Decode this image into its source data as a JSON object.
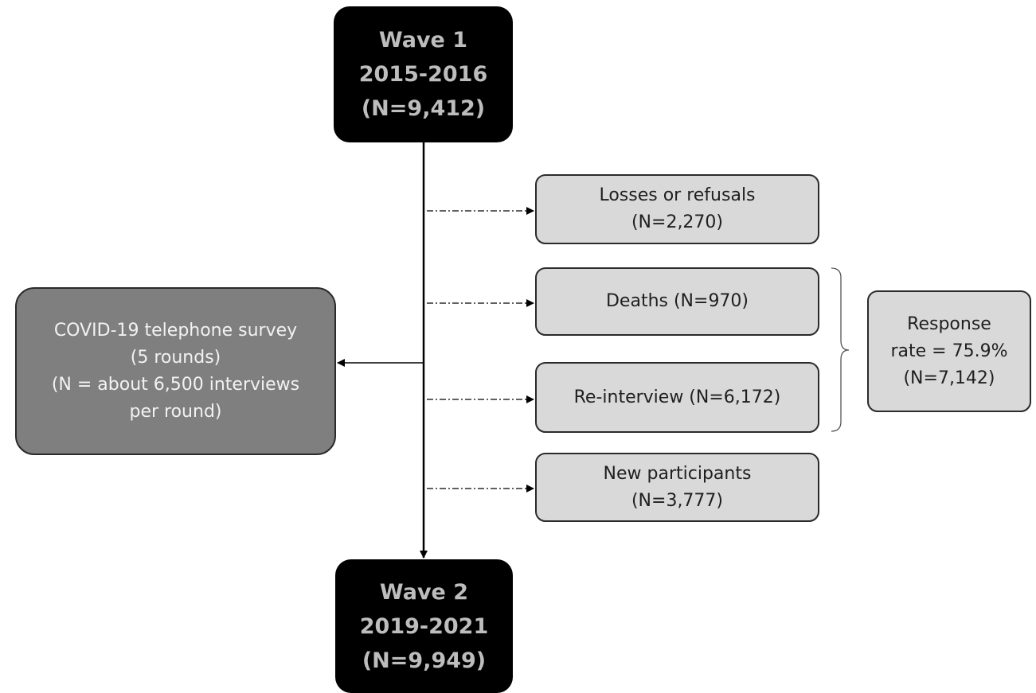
{
  "colors": {
    "wave_fill": "#000000",
    "wave_text": "#bdbdbd",
    "box_fill": "#d9d9d9",
    "covid_fill": "#7f7f7f",
    "covid_text": "#f2f2f2",
    "stroke": "#2b2b2b"
  },
  "wave1": {
    "lines": [
      "Wave 1",
      "2015-2016",
      "(N=9,412)"
    ]
  },
  "wave2": {
    "lines": [
      "Wave 2",
      "2019-2021",
      "(N=9,949)"
    ]
  },
  "losses": {
    "lines": [
      "Losses or refusals",
      "(N=2,270)"
    ]
  },
  "deaths": {
    "lines": [
      "Deaths (N=970)"
    ]
  },
  "reinterview": {
    "lines": [
      "Re-interview (N=6,172)"
    ]
  },
  "new_participants": {
    "lines": [
      "New participants",
      "(N=3,777)"
    ]
  },
  "response": {
    "lines": [
      "Response",
      "rate = 75.9%",
      "(N=7,142)"
    ]
  },
  "covid": {
    "lines": [
      "COVID-19 telephone survey",
      "(5 rounds)",
      "(N = about 6,500 interviews",
      "per round)"
    ]
  }
}
